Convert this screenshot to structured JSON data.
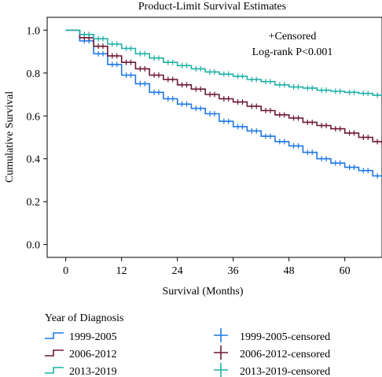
{
  "chart_data": {
    "type": "line",
    "title": "Product-Limit Survival Estimates",
    "xlabel": "Survival (Months)",
    "ylabel": "Cumulative Survival",
    "xlim": [
      -4,
      68
    ],
    "ylim": [
      -0.06,
      1.06
    ],
    "x_ticks": [
      "0",
      "12",
      "24",
      "36",
      "48",
      "60"
    ],
    "y_ticks": [
      "0.0",
      "0.2",
      "0.4",
      "0.6",
      "0.8",
      "1.0"
    ],
    "grid": false,
    "annotations": [
      "+Censored",
      "Log-rank P<0.001"
    ],
    "legend_title": "Year of Diagnosis",
    "legend_labels": [
      "1999-2005",
      "2006-2012",
      "2013-2019",
      "1999-2005-censored",
      "2006-2012-censored",
      "2013-2019-censored"
    ],
    "series": [
      {
        "name": "1999-2005",
        "color": "#1f78e6",
        "points": [
          [
            0,
            1.0
          ],
          [
            3,
            0.95
          ],
          [
            6,
            0.89
          ],
          [
            9,
            0.84
          ],
          [
            12,
            0.79
          ],
          [
            15,
            0.75
          ],
          [
            18,
            0.71
          ],
          [
            21,
            0.68
          ],
          [
            24,
            0.655
          ],
          [
            27,
            0.635
          ],
          [
            30,
            0.61
          ],
          [
            33,
            0.575
          ],
          [
            36,
            0.55
          ],
          [
            39,
            0.53
          ],
          [
            42,
            0.505
          ],
          [
            45,
            0.48
          ],
          [
            48,
            0.46
          ],
          [
            51,
            0.43
          ],
          [
            54,
            0.4
          ],
          [
            57,
            0.38
          ],
          [
            60,
            0.36
          ],
          [
            63,
            0.345
          ],
          [
            66,
            0.32
          ],
          [
            68,
            0.308
          ]
        ]
      },
      {
        "name": "2006-2012",
        "color": "#6e1733",
        "points": [
          [
            0,
            1.0
          ],
          [
            3,
            0.965
          ],
          [
            6,
            0.925
          ],
          [
            9,
            0.88
          ],
          [
            12,
            0.85
          ],
          [
            15,
            0.82
          ],
          [
            18,
            0.79
          ],
          [
            21,
            0.77
          ],
          [
            24,
            0.745
          ],
          [
            27,
            0.725
          ],
          [
            30,
            0.7
          ],
          [
            33,
            0.68
          ],
          [
            36,
            0.665
          ],
          [
            39,
            0.645
          ],
          [
            42,
            0.625
          ],
          [
            45,
            0.605
          ],
          [
            48,
            0.59
          ],
          [
            51,
            0.57
          ],
          [
            54,
            0.555
          ],
          [
            57,
            0.54
          ],
          [
            60,
            0.52
          ],
          [
            63,
            0.5
          ],
          [
            66,
            0.48
          ],
          [
            68,
            0.465
          ]
        ]
      },
      {
        "name": "2013-2019",
        "color": "#1fb0a6",
        "points": [
          [
            0,
            1.0
          ],
          [
            3,
            0.98
          ],
          [
            6,
            0.96
          ],
          [
            9,
            0.935
          ],
          [
            12,
            0.915
          ],
          [
            15,
            0.89
          ],
          [
            18,
            0.87
          ],
          [
            21,
            0.85
          ],
          [
            24,
            0.835
          ],
          [
            27,
            0.82
          ],
          [
            30,
            0.805
          ],
          [
            33,
            0.795
          ],
          [
            36,
            0.785
          ],
          [
            39,
            0.77
          ],
          [
            42,
            0.76
          ],
          [
            45,
            0.745
          ],
          [
            48,
            0.735
          ],
          [
            51,
            0.73
          ],
          [
            54,
            0.72
          ],
          [
            57,
            0.715
          ],
          [
            60,
            0.71
          ],
          [
            63,
            0.705
          ],
          [
            66,
            0.697
          ],
          [
            68,
            0.693
          ]
        ]
      }
    ]
  }
}
